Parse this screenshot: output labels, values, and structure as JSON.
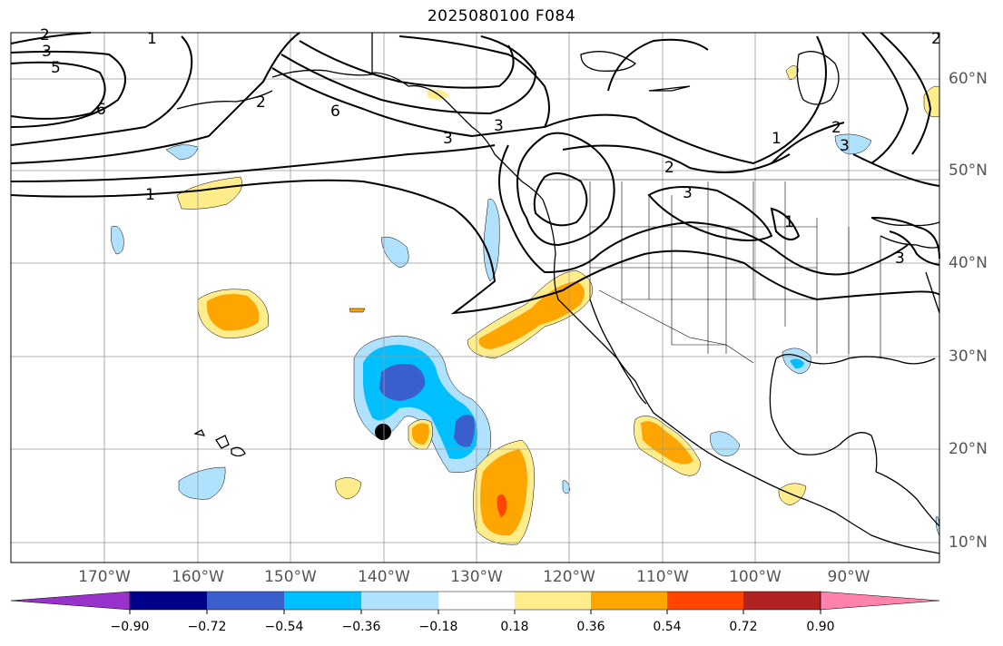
{
  "title": "2025080100 F084",
  "lon_labels": [
    "170°W",
    "160°W",
    "150°W",
    "140°W",
    "130°W",
    "120°W",
    "110°W",
    "100°W",
    "90°W"
  ],
  "lat_labels": [
    "60°N",
    "50°N",
    "40°N",
    "30°N",
    "20°N",
    "10°N"
  ],
  "contour_labels": [
    "1",
    "2",
    "3",
    "5",
    "6",
    "6",
    "1",
    "2",
    "3",
    "3",
    "2",
    "3",
    "1",
    "2",
    "3",
    "3",
    "2",
    "1"
  ],
  "colorbar": {
    "ticks": [
      "−0.90",
      "−0.72",
      "−0.54",
      "−0.36",
      "−0.18",
      "0.18",
      "0.36",
      "0.54",
      "0.72",
      "0.90"
    ],
    "colors": [
      "#9932cc",
      "#00008b",
      "#3a5fcd",
      "#00bfff",
      "#b0e2ff",
      "#ffffff",
      "#ffec8b",
      "#ffa500",
      "#ff4500",
      "#b22222",
      "#ff82ab"
    ]
  },
  "colors": {
    "land": "#000000",
    "grid": "#999999",
    "contour": "#000000",
    "marker": "#000000"
  }
}
